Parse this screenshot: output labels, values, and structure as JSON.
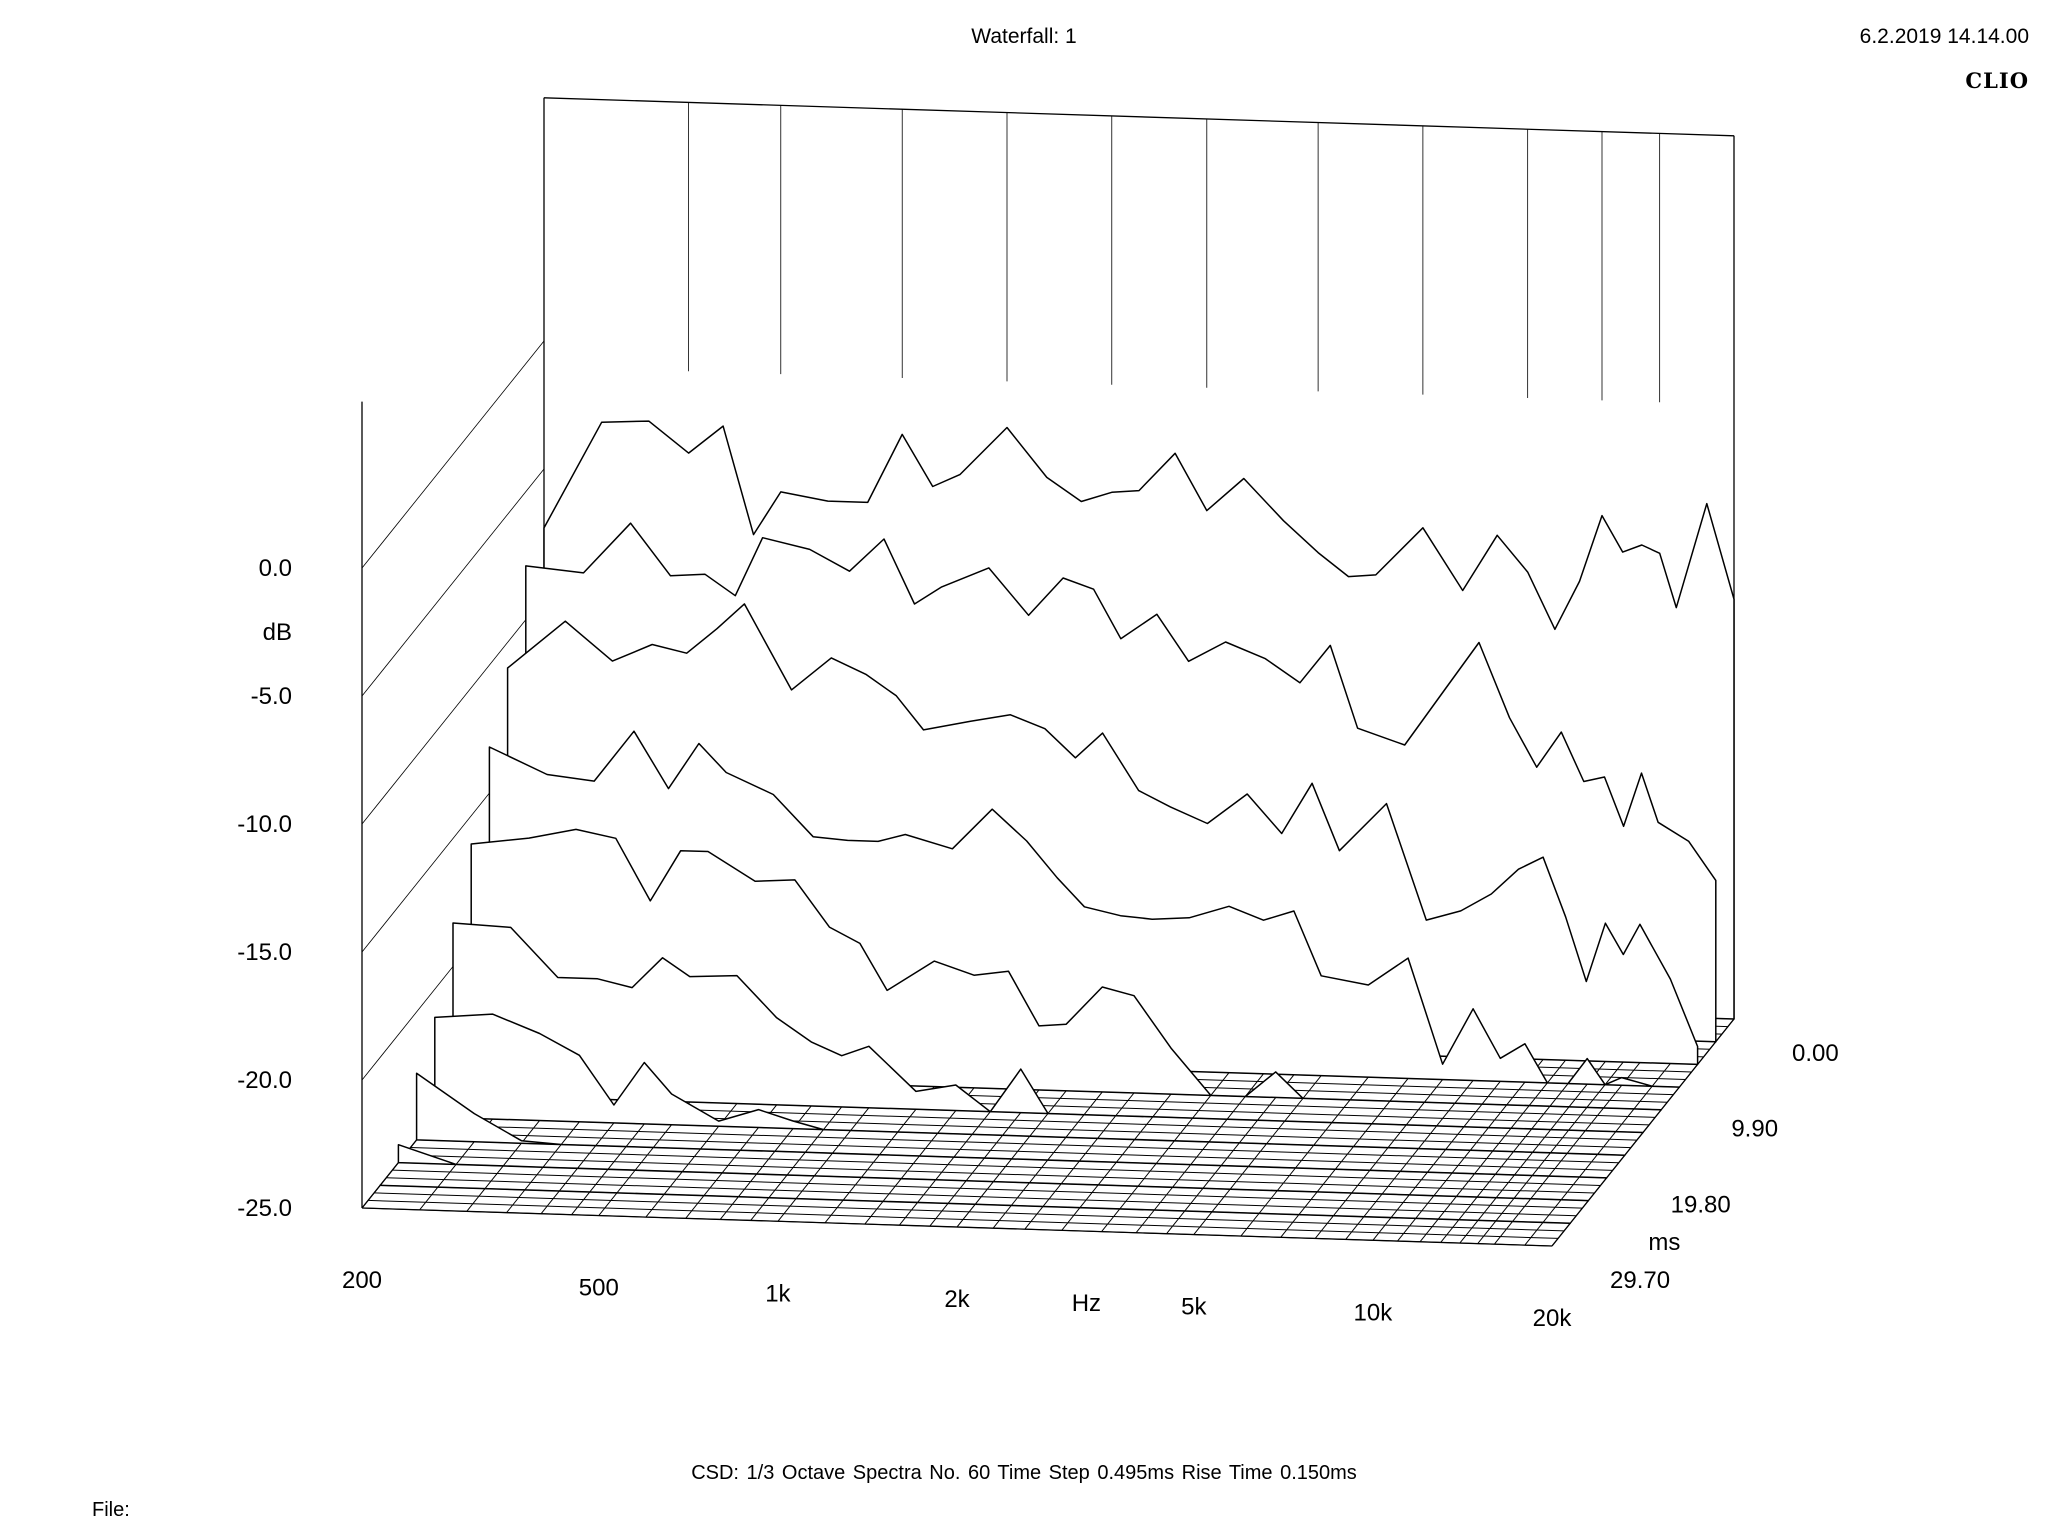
{
  "header": {
    "title": "Waterfall: 1",
    "datetime": "6.2.2019 14.14.00",
    "brand": "CLIO"
  },
  "footer": {
    "settings": "CSD:   1/3 Octave   Spectra No. 60   Time Step 0.495ms   Rise Time 0.150ms",
    "file_label": "File:"
  },
  "chart_data": {
    "type": "waterfall",
    "title": "Waterfall: 1",
    "xlabel": "Hz",
    "ylabel": "dB",
    "zlabel": "ms",
    "x_scale": "log",
    "xlim": [
      200,
      20000
    ],
    "ylim": [
      -25,
      0
    ],
    "zlim": [
      0,
      29.7
    ],
    "x_ticks": [
      "200",
      "500",
      "1k",
      "2k",
      "5k",
      "10k",
      "20k"
    ],
    "y_ticks": [
      "0.0",
      "-5.0",
      "-10.0",
      "-15.0",
      "-20.0",
      "-25.0"
    ],
    "z_ticks": [
      "0.00",
      "9.90",
      "19.80",
      "29.70"
    ],
    "spectra_count": 60,
    "time_step_ms": 0.495,
    "rise_time_ms": 0.15,
    "smoothing": "1/3 Octave",
    "x": [
      200,
      250,
      300,
      350,
      400,
      450,
      500,
      600,
      700,
      800,
      900,
      1000,
      1200,
      1400,
      1600,
      1800,
      2000,
      2300,
      2600,
      3000,
      3500,
      4000,
      4500,
      5000,
      6000,
      7000,
      8000,
      9000,
      10000,
      11000,
      12000,
      13000,
      14000,
      15000,
      16000,
      18000,
      20000
    ],
    "series": [
      {
        "time_ms": 0.0,
        "values": [
          -7.3,
          -3.1,
          -3.0,
          -4.2,
          -3.1,
          -7.3,
          -5.6,
          -5.9,
          -5.9,
          -3.2,
          -5.2,
          -4.7,
          -2.8,
          -4.7,
          -5.6,
          -5.2,
          -5.1,
          -3.6,
          -5.8,
          -4.5,
          -6.1,
          -7.3,
          -8.2,
          -8.1,
          -6.2,
          -8.6,
          -6.4,
          -7.8,
          -10.0,
          -8.1,
          -5.5,
          -6.9,
          -6.6,
          -6.9,
          -9.0,
          -4.9,
          -8.6
        ]
      },
      {
        "time_ms": 2.97,
        "values": [
          -7.9,
          -8.1,
          -6.1,
          -8.1,
          -8.0,
          -8.8,
          -6.5,
          -6.9,
          -7.7,
          -6.4,
          -8.9,
          -8.2,
          -7.4,
          -9.2,
          -7.7,
          -8.1,
          -10.0,
          -9.0,
          -10.8,
          -10.0,
          -10.6,
          -11.5,
          -10.0,
          -13.2,
          -13.8,
          -11.6,
          -9.7,
          -12.6,
          -14.5,
          -13.1,
          -15.0,
          -14.8,
          -16.7,
          -14.6,
          -16.5,
          -17.2,
          -18.7
        ]
      },
      {
        "time_ms": 5.94,
        "values": [
          -11.0,
          -9.1,
          -10.6,
          -9.9,
          -10.2,
          -9.2,
          -8.2,
          -11.5,
          -10.2,
          -10.8,
          -11.6,
          -12.9,
          -12.5,
          -12.2,
          -12.7,
          -13.8,
          -12.8,
          -15.0,
          -15.6,
          -16.2,
          -15.0,
          -16.5,
          -14.5,
          -17.1,
          -15.2,
          -19.7,
          -19.3,
          -18.6,
          -17.6,
          -17.1,
          -19.4,
          -21.9,
          -19.6,
          -20.8,
          -19.6,
          -21.7,
          -24.3
        ]
      },
      {
        "time_ms": 8.91,
        "values": [
          -13.2,
          -14.2,
          -14.4,
          -12.4,
          -14.6,
          -12.8,
          -13.9,
          -14.7,
          -16.3,
          -16.4,
          -16.4,
          -16.1,
          -16.6,
          -15.0,
          -16.2,
          -17.6,
          -18.7,
          -19.0,
          -19.1,
          -19.0,
          -18.5,
          -19.0,
          -18.6,
          -21.1,
          -21.4,
          -20.3,
          -24.4,
          -22.2,
          -24.1,
          -23.5,
          -25.0,
          -25.0,
          -24.0,
          -25.0,
          -24.7,
          -25.0,
          -25.0
        ]
      },
      {
        "time_ms": 11.88,
        "values": [
          -16.1,
          -15.8,
          -15.4,
          -15.7,
          -18.1,
          -16.1,
          -16.1,
          -17.2,
          -17.1,
          -18.9,
          -19.5,
          -21.3,
          -20.1,
          -20.6,
          -20.4,
          -22.5,
          -22.4,
          -20.9,
          -21.2,
          -23.2,
          -25.0,
          -25.0,
          -24.0,
          -25.0,
          -25.0,
          -25.0,
          -25.0,
          -25.0,
          -25.0,
          -25.0,
          -25.0,
          -25.0,
          -25.0,
          -25.0,
          -25.0,
          -25.0,
          -25.0
        ]
      },
      {
        "time_ms": 14.85,
        "values": [
          -18.3,
          -18.4,
          -20.3,
          -20.3,
          -20.6,
          -19.4,
          -20.1,
          -20.0,
          -21.6,
          -22.5,
          -23.0,
          -22.6,
          -24.3,
          -24.0,
          -25.0,
          -23.3,
          -25.0,
          -25.0,
          -25.0,
          -25.0,
          -25.0,
          -25.0,
          -25.0,
          -25.0,
          -25.0,
          -25.0,
          -25.0,
          -25.0,
          -25.0,
          -25.0,
          -25.0,
          -25.0,
          -25.0,
          -25.0,
          -25.0,
          -25.0,
          -25.0
        ]
      },
      {
        "time_ms": 17.82,
        "values": [
          -21.1,
          -20.9,
          -21.6,
          -22.4,
          -24.3,
          -22.6,
          -23.8,
          -24.8,
          -24.3,
          -24.7,
          -25.0,
          -25.0,
          -25.0,
          -25.0,
          -25.0,
          -25.0,
          -25.0,
          -25.0,
          -25.0,
          -25.0,
          -25.0,
          -25.0,
          -25.0,
          -25.0,
          -25.0,
          -25.0,
          -25.0,
          -25.0,
          -25.0,
          -25.0,
          -25.0,
          -25.0,
          -25.0,
          -25.0,
          -25.0,
          -25.0,
          -25.0
        ]
      },
      {
        "time_ms": 20.79,
        "values": [
          -22.4,
          -23.9,
          -24.9,
          -25.0,
          -25.0,
          -25.0,
          -25.0,
          -25.0,
          -25.0,
          -25.0,
          -25.0,
          -25.0,
          -25.0,
          -25.0,
          -25.0,
          -25.0,
          -25.0,
          -25.0,
          -25.0,
          -25.0,
          -25.0,
          -25.0,
          -25.0,
          -25.0,
          -25.0,
          -25.0,
          -25.0,
          -25.0,
          -25.0,
          -25.0,
          -25.0,
          -25.0,
          -25.0,
          -25.0,
          -25.0,
          -25.0,
          -25.0
        ]
      },
      {
        "time_ms": 23.76,
        "values": [
          -24.3,
          -25.0,
          -25.0,
          -25.0,
          -25.0,
          -25.0,
          -25.0,
          -25.0,
          -25.0,
          -25.0,
          -25.0,
          -25.0,
          -25.0,
          -25.0,
          -25.0,
          -25.0,
          -25.0,
          -25.0,
          -25.0,
          -25.0,
          -25.0,
          -25.0,
          -25.0,
          -25.0,
          -25.0,
          -25.0,
          -25.0,
          -25.0,
          -25.0,
          -25.0,
          -25.0,
          -25.0,
          -25.0,
          -25.0,
          -25.0,
          -25.0,
          -25.0
        ]
      },
      {
        "time_ms": 26.73,
        "values": [
          -25.0,
          -25.0,
          -25.0,
          -25.0,
          -25.0,
          -25.0,
          -25.0,
          -25.0,
          -25.0,
          -25.0,
          -25.0,
          -25.0,
          -25.0,
          -25.0,
          -25.0,
          -25.0,
          -25.0,
          -25.0,
          -25.0,
          -25.0,
          -25.0,
          -25.0,
          -25.0,
          -25.0,
          -25.0,
          -25.0,
          -25.0,
          -25.0,
          -25.0,
          -25.0,
          -25.0,
          -25.0,
          -25.0,
          -25.0,
          -25.0,
          -25.0,
          -25.0
        ]
      }
    ],
    "grid": true,
    "legend": "none",
    "colors": {
      "line": "#000000",
      "background": "#ffffff"
    }
  }
}
